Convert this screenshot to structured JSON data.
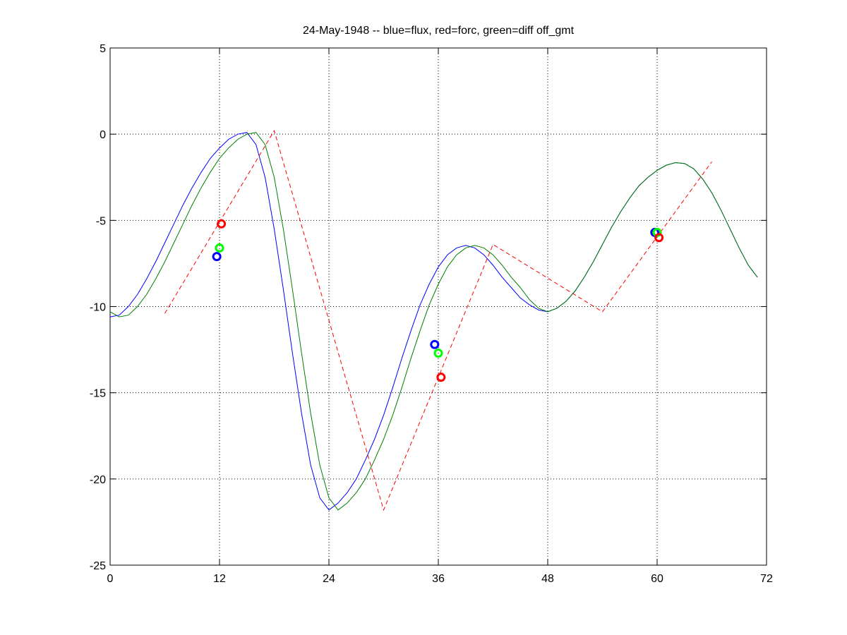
{
  "chart_data": {
    "type": "line",
    "title": "24-May-1948 -- blue=flux, red=forc, green=diff off_gmt",
    "xlim": [
      0,
      72
    ],
    "xticks": [
      0,
      12,
      24,
      36,
      48,
      60,
      72
    ],
    "ylim": [
      -25,
      5
    ],
    "yticks": [
      -25,
      -20,
      -15,
      -10,
      -5,
      0,
      5
    ],
    "grid": true,
    "x": [
      0,
      1,
      2,
      3,
      4,
      5,
      6,
      7,
      8,
      9,
      10,
      11,
      12,
      13,
      14,
      15,
      16,
      17,
      18,
      19,
      20,
      21,
      22,
      23,
      24,
      25,
      26,
      27,
      28,
      29,
      30,
      31,
      32,
      33,
      34,
      35,
      36,
      37,
      38,
      39,
      40,
      41,
      42,
      43,
      44,
      45,
      46,
      47,
      48,
      49,
      50,
      51,
      52,
      53,
      54,
      55,
      56,
      57,
      58,
      59,
      60,
      61,
      62,
      63,
      64,
      65,
      66,
      67,
      68,
      69,
      70,
      71
    ],
    "series": [
      {
        "color": "#0000ff",
        "style": "solid",
        "values": [
          -10.6,
          -10.5,
          -10.0,
          -9.3,
          -8.4,
          -7.4,
          -6.3,
          -5.2,
          -4.1,
          -3.1,
          -2.2,
          -1.4,
          -0.8,
          -0.3,
          0.0,
          0.1,
          -0.6,
          -2.5,
          -5.5,
          -9.0,
          -12.7,
          -16.2,
          -19.2,
          -21.1,
          -21.8,
          -21.4,
          -20.8,
          -20.0,
          -18.9,
          -17.7,
          -16.3,
          -14.7,
          -13.0,
          -11.4,
          -9.9,
          -8.7,
          -7.7,
          -7.0,
          -6.6,
          -6.45,
          -6.6,
          -7.0,
          -7.6,
          -8.3,
          -8.9,
          -9.5,
          -9.9,
          -10.2,
          -10.3,
          -10.1,
          -9.7,
          -9.1,
          -8.3,
          -7.4,
          -6.4,
          -5.4,
          -4.5,
          -3.7,
          -3.0,
          -2.5,
          -2.1,
          -1.8,
          -1.65,
          -1.7,
          -2.0,
          -2.6,
          -3.4,
          -4.4,
          -5.5,
          -6.6,
          -7.6,
          -8.3
        ]
      },
      {
        "color": "#007f00",
        "style": "solid",
        "values": [
          -10.3,
          -10.6,
          -10.5,
          -10.0,
          -9.3,
          -8.4,
          -7.4,
          -6.3,
          -5.2,
          -4.1,
          -3.1,
          -2.2,
          -1.4,
          -0.8,
          -0.3,
          0.0,
          0.1,
          -0.6,
          -2.5,
          -5.5,
          -9.0,
          -12.7,
          -16.2,
          -19.2,
          -21.1,
          -21.8,
          -21.4,
          -20.8,
          -20.0,
          -18.9,
          -17.7,
          -16.3,
          -14.7,
          -13.0,
          -11.4,
          -9.9,
          -8.7,
          -7.7,
          -7.0,
          -6.6,
          -6.45,
          -6.6,
          -7.0,
          -7.6,
          -8.3,
          -8.9,
          -9.6,
          -10.1,
          -10.3,
          -10.1,
          -9.7,
          -9.1,
          -8.3,
          -7.4,
          -6.4,
          -5.4,
          -4.5,
          -3.7,
          -3.0,
          -2.5,
          -2.1,
          -1.8,
          -1.65,
          -1.7,
          -2.0,
          -2.6,
          -3.4,
          -4.4,
          -5.5,
          -6.6,
          -7.6,
          -8.3
        ]
      },
      {
        "color": "#ff0000",
        "style": "dashed",
        "x": [
          6,
          18,
          30,
          42,
          54,
          66
        ],
        "values": [
          -10.4,
          0.2,
          -21.8,
          -6.4,
          -10.3,
          -1.6
        ]
      },
      {
        "color": "#0000ff",
        "style": "marker",
        "x": [
          11.7,
          35.6,
          59.75
        ],
        "values": [
          -7.1,
          -12.2,
          -5.7
        ]
      },
      {
        "color": "#00ff00",
        "style": "marker",
        "x": [
          12.0,
          36.0,
          60.0
        ],
        "values": [
          -6.6,
          -12.7,
          -5.7
        ]
      },
      {
        "color": "#ff0000",
        "style": "marker",
        "x": [
          12.2,
          36.3,
          60.2
        ],
        "values": [
          -5.2,
          -14.1,
          -6.0
        ]
      }
    ]
  }
}
